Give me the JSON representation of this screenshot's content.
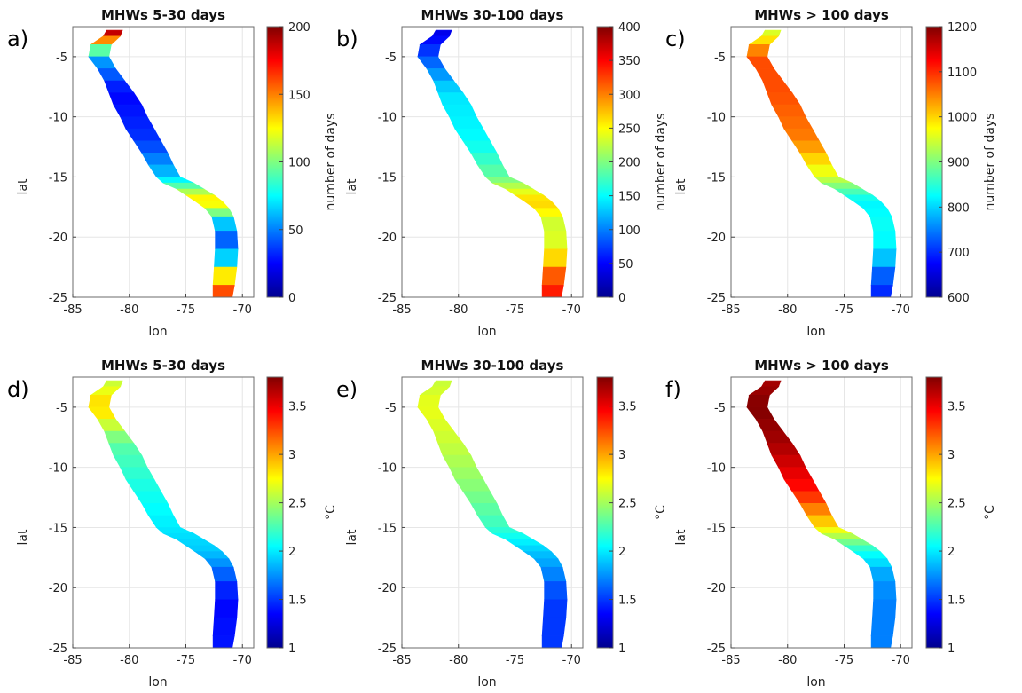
{
  "chart_data": [
    {
      "type": "heatmap",
      "panel_label": "a)",
      "title": "MHWs 5-30 days",
      "xlabel": "lon",
      "ylabel": "lat",
      "xlim": [
        -85,
        -69
      ],
      "ylim": [
        -25,
        -2.5
      ],
      "xticks": [
        -85,
        -80,
        -75,
        -70
      ],
      "yticks": [
        -5,
        -10,
        -15,
        -20,
        -25
      ],
      "colorbar": {
        "label": "number of days",
        "range": [
          0,
          200
        ],
        "ticks": [
          0,
          50,
          100,
          150,
          200
        ],
        "colormap": "jet"
      },
      "region_values": [
        {
          "lat": -3,
          "value": 190
        },
        {
          "lat": -5,
          "value": 60
        },
        {
          "lat": -8,
          "value": 25
        },
        {
          "lat": -12,
          "value": 35
        },
        {
          "lat": -15,
          "value": 65
        },
        {
          "lat": -17,
          "value": 135
        },
        {
          "lat": -19,
          "value": 60
        },
        {
          "lat": -21,
          "value": 35
        },
        {
          "lat": -24,
          "value": 160
        }
      ]
    },
    {
      "type": "heatmap",
      "panel_label": "b)",
      "title": "MHWs 30-100 days",
      "xlabel": "lon",
      "ylabel": "lat",
      "xlim": [
        -85,
        -69
      ],
      "ylim": [
        -25,
        -2.5
      ],
      "xticks": [
        -85,
        -80,
        -75,
        -70
      ],
      "yticks": [
        -5,
        -10,
        -15,
        -20,
        -25
      ],
      "colorbar": {
        "label": "number of days",
        "range": [
          0,
          400
        ],
        "ticks": [
          0,
          50,
          100,
          150,
          200,
          250,
          300,
          350,
          400
        ],
        "colormap": "jet"
      },
      "region_values": [
        {
          "lat": -3,
          "value": 40
        },
        {
          "lat": -5,
          "value": 80
        },
        {
          "lat": -8,
          "value": 140
        },
        {
          "lat": -12,
          "value": 150
        },
        {
          "lat": -15,
          "value": 190
        },
        {
          "lat": -17,
          "value": 270
        },
        {
          "lat": -19,
          "value": 230
        },
        {
          "lat": -21,
          "value": 240
        },
        {
          "lat": -24,
          "value": 340
        }
      ]
    },
    {
      "type": "heatmap",
      "panel_label": "c)",
      "title": "MHWs > 100 days",
      "xlabel": "lon",
      "ylabel": "lat",
      "xlim": [
        -85,
        -69
      ],
      "ylim": [
        -25,
        -2.5
      ],
      "xticks": [
        -85,
        -80,
        -75,
        -70
      ],
      "yticks": [
        -5,
        -10,
        -15,
        -20,
        -25
      ],
      "colorbar": {
        "label": "number of days",
        "range": [
          600,
          1200
        ],
        "ticks": [
          600,
          700,
          800,
          900,
          1000,
          1100,
          1200
        ],
        "colormap": "jet"
      },
      "region_values": [
        {
          "lat": -3,
          "value": 950
        },
        {
          "lat": -5,
          "value": 1080
        },
        {
          "lat": -8,
          "value": 1080
        },
        {
          "lat": -12,
          "value": 1050
        },
        {
          "lat": -15,
          "value": 950
        },
        {
          "lat": -17,
          "value": 820
        },
        {
          "lat": -19,
          "value": 830
        },
        {
          "lat": -21,
          "value": 820
        },
        {
          "lat": -24,
          "value": 700
        }
      ]
    },
    {
      "type": "heatmap",
      "panel_label": "d)",
      "title": "MHWs 5-30 days",
      "xlabel": "lon",
      "ylabel": "lat",
      "xlim": [
        -85,
        -69
      ],
      "ylim": [
        -25,
        -2.5
      ],
      "xticks": [
        -85,
        -80,
        -75,
        -70
      ],
      "yticks": [
        -5,
        -10,
        -15,
        -20,
        -25
      ],
      "colorbar": {
        "label": "°C",
        "range": [
          1,
          3.8
        ],
        "ticks": [
          1,
          1.5,
          2,
          2.5,
          3,
          3.5
        ],
        "colormap": "jet"
      },
      "region_values": [
        {
          "lat": -3,
          "value": 2.6
        },
        {
          "lat": -5,
          "value": 2.9
        },
        {
          "lat": -8,
          "value": 2.3
        },
        {
          "lat": -12,
          "value": 2.1
        },
        {
          "lat": -15,
          "value": 2.0
        },
        {
          "lat": -17,
          "value": 1.9
        },
        {
          "lat": -19,
          "value": 1.6
        },
        {
          "lat": -21,
          "value": 1.35
        },
        {
          "lat": -24,
          "value": 1.4
        }
      ]
    },
    {
      "type": "heatmap",
      "panel_label": "e)",
      "title": "MHWs 30-100 days",
      "xlabel": "lon",
      "ylabel": "lat",
      "xlim": [
        -85,
        -69
      ],
      "ylim": [
        -25,
        -2.5
      ],
      "xticks": [
        -85,
        -80,
        -75,
        -70
      ],
      "yticks": [
        -5,
        -10,
        -15,
        -20,
        -25
      ],
      "colorbar": {
        "label": "°C",
        "range": [
          1,
          3.8
        ],
        "ticks": [
          1,
          1.5,
          2,
          2.5,
          3,
          3.5
        ],
        "colormap": "jet"
      },
      "region_values": [
        {
          "lat": -3,
          "value": 2.6
        },
        {
          "lat": -5,
          "value": 2.7
        },
        {
          "lat": -8,
          "value": 2.6
        },
        {
          "lat": -12,
          "value": 2.4
        },
        {
          "lat": -15,
          "value": 2.2
        },
        {
          "lat": -17,
          "value": 1.9
        },
        {
          "lat": -19,
          "value": 1.7
        },
        {
          "lat": -21,
          "value": 1.5
        },
        {
          "lat": -24,
          "value": 1.5
        }
      ]
    },
    {
      "type": "heatmap",
      "panel_label": "f)",
      "title": "MHWs > 100 days",
      "xlabel": "lon",
      "ylabel": "lat",
      "xlim": [
        -85,
        -69
      ],
      "ylim": [
        -25,
        -2.5
      ],
      "xticks": [
        -85,
        -80,
        -75,
        -70
      ],
      "yticks": [
        -5,
        -10,
        -15,
        -20,
        -25
      ],
      "colorbar": {
        "label": "°C",
        "range": [
          1,
          3.8
        ],
        "ticks": [
          1,
          1.5,
          2,
          2.5,
          3,
          3.5
        ],
        "colormap": "jet"
      },
      "region_values": [
        {
          "lat": -3,
          "value": 3.7
        },
        {
          "lat": -5,
          "value": 3.8
        },
        {
          "lat": -8,
          "value": 3.7
        },
        {
          "lat": -12,
          "value": 3.4
        },
        {
          "lat": -15,
          "value": 2.8
        },
        {
          "lat": -17,
          "value": 2.1
        },
        {
          "lat": -19,
          "value": 1.8
        },
        {
          "lat": -21,
          "value": 1.7
        },
        {
          "lat": -24,
          "value": 1.7
        }
      ]
    }
  ]
}
